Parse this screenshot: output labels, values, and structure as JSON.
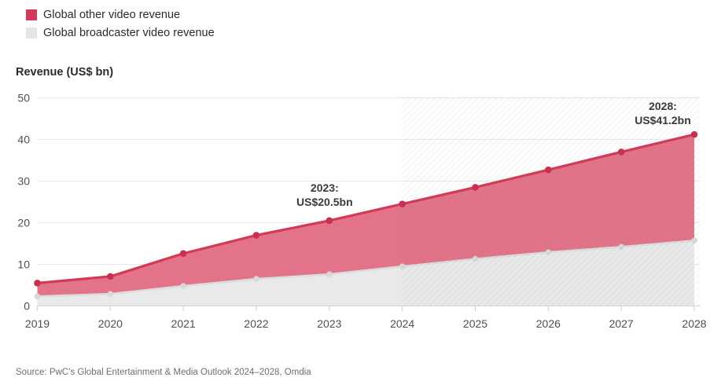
{
  "legend": {
    "items": [
      {
        "label": "Global other video revenue",
        "color": "#d2395a"
      },
      {
        "label": "Global broadcaster video revenue",
        "color": "#e5e5e5"
      }
    ]
  },
  "footer": {
    "source": "Source: PwC’s Global Entertainment & Media Outlook 2024–2028, Omdia"
  },
  "chart_data": {
    "type": "area",
    "title": "",
    "ylabel": "Revenue (US$ bn)",
    "xlabel": "",
    "x": [
      2019,
      2020,
      2021,
      2022,
      2023,
      2024,
      2025,
      2026,
      2027,
      2028
    ],
    "series": [
      {
        "name": "Global other video revenue",
        "line_color": "#d23a56",
        "fill_color": "#e27389",
        "marker_color": "#c8304f",
        "values": [
          5.5,
          7.1,
          12.6,
          17.0,
          20.5,
          24.5,
          28.5,
          32.7,
          37.0,
          41.2
        ]
      },
      {
        "name": "Global broadcaster video revenue",
        "line_color": "#dcdcdc",
        "fill_color": "#e9e9e9",
        "marker_color": "#d8d8d8",
        "values": [
          2.3,
          2.9,
          4.8,
          6.5,
          7.6,
          9.5,
          11.3,
          12.9,
          14.2,
          15.7
        ]
      }
    ],
    "ylim": [
      0,
      50
    ],
    "yticks": [
      0,
      10,
      20,
      30,
      40,
      50
    ],
    "grid": "horizontal",
    "legend_position": "top-left",
    "forecast_region": {
      "start_x": 2024,
      "style": "diagonal-hatch"
    },
    "annotations": [
      {
        "year": 2023,
        "lines": [
          "2023:",
          "US$20.5bn"
        ]
      },
      {
        "year": 2028,
        "lines": [
          "2028:",
          "US$41.2bn"
        ]
      }
    ]
  }
}
